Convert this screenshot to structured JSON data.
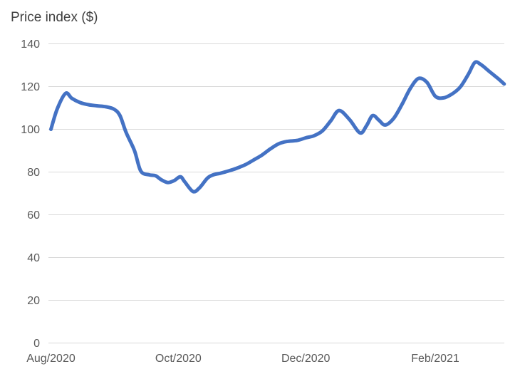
{
  "chart_data": {
    "type": "line",
    "title": "Price index ($)",
    "xlabel": "",
    "ylabel": "",
    "legend": "none",
    "grid": "horizontal",
    "ylim": [
      0,
      140
    ],
    "y_tick_step": 20,
    "y_tick_labels": [
      "0",
      "20",
      "40",
      "60",
      "80",
      "100",
      "120",
      "140"
    ],
    "x_ticks": [
      {
        "label": "Aug/2020",
        "day": 0
      },
      {
        "label": "Oct/2020",
        "day": 61
      },
      {
        "label": "Dec/2020",
        "day": 122
      },
      {
        "label": "Feb/2021",
        "day": 184
      }
    ],
    "x_domain_days": [
      0,
      217
    ],
    "series": [
      {
        "name": "Price index",
        "days": [
          0,
          3,
          7,
          10,
          14,
          18,
          22,
          26,
          30,
          33,
          36,
          40,
          43,
          47,
          50,
          53,
          56,
          59,
          62,
          64,
          68,
          71,
          75,
          78,
          81,
          85,
          89,
          93,
          97,
          101,
          105,
          109,
          113,
          118,
          122,
          126,
          130,
          134,
          138,
          143,
          148,
          151,
          154,
          157,
          160,
          164,
          168,
          172,
          176,
          180,
          184,
          188,
          192,
          196,
          200,
          203,
          206,
          210,
          214,
          217
        ],
        "values": [
          100,
          109.5,
          116.8,
          114.5,
          112.5,
          111.5,
          111,
          110.6,
          109.5,
          106.5,
          98.5,
          90,
          80.5,
          78.7,
          78.3,
          76.3,
          75.1,
          76,
          77.8,
          75.5,
          70.9,
          72.5,
          77.2,
          78.8,
          79.4,
          80.5,
          81.8,
          83.4,
          85.6,
          87.9,
          90.8,
          93.2,
          94.3,
          94.8,
          96,
          97,
          99.3,
          104,
          108.8,
          104.5,
          98.3,
          101.5,
          106.4,
          104.3,
          102,
          105,
          111.5,
          119,
          123.8,
          122,
          115.5,
          114.7,
          116.5,
          119.8,
          126,
          131.3,
          130.2,
          127,
          123.8,
          121.2
        ]
      }
    ],
    "colors": {
      "line": "#4472C4",
      "grid": "#D9D9D9",
      "axis_text": "#595959",
      "title_text": "#404040",
      "background": "#FFFFFF"
    }
  }
}
